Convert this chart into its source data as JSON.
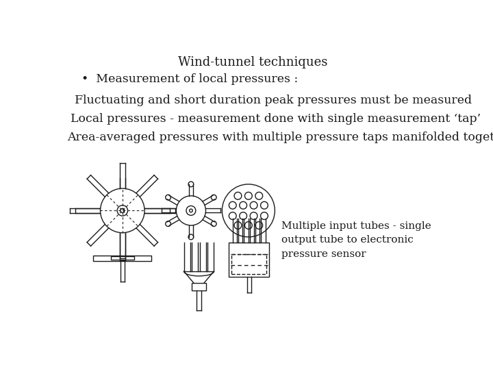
{
  "title": "Wind-tunnel techniques",
  "bullet": "•  Measurement of local pressures :",
  "line2": "Fluctuating and short duration peak pressures must be measured",
  "line3": "Local pressures - measurement done with single measurement ‘tap’",
  "line4": "Area-averaged pressures with multiple pressure taps manifolded together",
  "annotation": "Multiple input tubes - single\noutput tube to electronic\npressure sensor",
  "bg_color": "#ffffff",
  "text_color": "#1a1a1a",
  "title_fontsize": 13,
  "body_fontsize": 12.5,
  "annot_fontsize": 11,
  "drawing_color": "#1a1a1a"
}
